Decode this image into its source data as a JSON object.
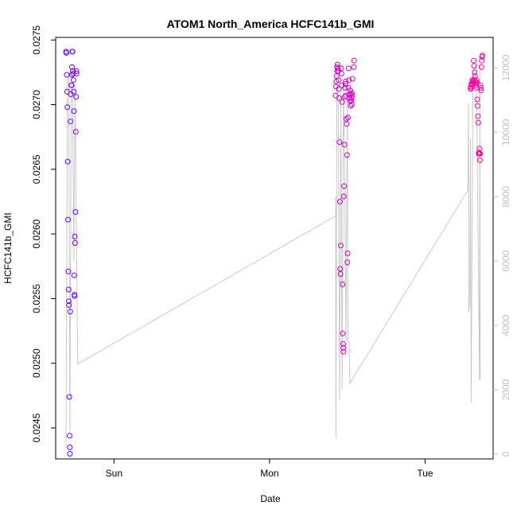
{
  "chart_data": {
    "type": "scatter",
    "title": "ATOM1 North_America HCFC141b_GMI",
    "xlabel": "Date",
    "ylabel": "HCFC141b_GMI",
    "x_ticks": [
      "Sun",
      "Mon",
      "Tue"
    ],
    "x_tick_hours": [
      24,
      48,
      72
    ],
    "xlim_hours": [
      15.0,
      82.5
    ],
    "ylim": [
      0.02426,
      0.02752
    ],
    "y_ticks": [
      0.0245,
      0.025,
      0.0255,
      0.026,
      0.0265,
      0.027,
      0.0275
    ],
    "y_tick_labels": [
      "0.0245",
      "0.0250",
      "0.0255",
      "0.0260",
      "0.0265",
      "0.0270",
      "0.0275"
    ],
    "y2lim": [
      -150,
      12950
    ],
    "y2_ticks": [
      0,
      2000,
      4000,
      6000,
      8000,
      10000,
      12000
    ],
    "y2_tick_labels": [
      "0",
      "2000",
      "4000",
      "6000",
      "8000",
      "10000",
      "12000"
    ],
    "grid": false,
    "series": [
      {
        "axis": "left",
        "style": "points",
        "color_start": "#6a00ff",
        "color_end": "#ff00a0",
        "points": [
          [
            16.6,
            0.02741
          ],
          [
            16.65,
            0.0274
          ],
          [
            16.7,
            0.02723
          ],
          [
            16.75,
            0.0271
          ],
          [
            16.8,
            0.02698
          ],
          [
            16.85,
            0.02656
          ],
          [
            16.9,
            0.02611
          ],
          [
            16.95,
            0.02571
          ],
          [
            17.0,
            0.02557
          ],
          [
            17.02,
            0.02548
          ],
          [
            17.05,
            0.02545
          ],
          [
            17.1,
            0.02474
          ],
          [
            17.15,
            0.02444
          ],
          [
            17.18,
            0.02435
          ],
          [
            17.2,
            0.0243
          ],
          [
            17.25,
            0.0254
          ],
          [
            17.3,
            0.02687
          ],
          [
            17.35,
            0.02708
          ],
          [
            17.4,
            0.02715
          ],
          [
            17.45,
            0.02715
          ],
          [
            17.5,
            0.02723
          ],
          [
            17.52,
            0.02729
          ],
          [
            17.55,
            0.02741
          ],
          [
            17.6,
            0.02741
          ],
          [
            17.65,
            0.02726
          ],
          [
            17.7,
            0.02724
          ],
          [
            17.75,
            0.02719
          ],
          [
            17.8,
            0.0271
          ],
          [
            17.82,
            0.02695
          ],
          [
            17.85,
            0.02568
          ],
          [
            17.9,
            0.02553
          ],
          [
            17.92,
            0.02552
          ],
          [
            17.95,
            0.02598
          ],
          [
            18.0,
            0.02593
          ],
          [
            18.05,
            0.02617
          ],
          [
            18.1,
            0.02679
          ],
          [
            18.15,
            0.02706
          ],
          [
            18.2,
            0.02726
          ],
          [
            18.22,
            0.02724
          ],
          [
            58.2,
            0.02707
          ],
          [
            58.25,
            0.02714
          ],
          [
            58.3,
            0.02718
          ],
          [
            58.35,
            0.02722
          ],
          [
            58.4,
            0.02729
          ],
          [
            58.45,
            0.02726
          ],
          [
            58.5,
            0.02731
          ],
          [
            58.55,
            0.02728
          ],
          [
            58.6,
            0.02726
          ],
          [
            58.65,
            0.02719
          ],
          [
            58.7,
            0.02712
          ],
          [
            58.75,
            0.02705
          ],
          [
            58.8,
            0.02671
          ],
          [
            58.85,
            0.02625
          ],
          [
            58.9,
            0.02573
          ],
          [
            58.95,
            0.02569
          ],
          [
            59.0,
            0.02591
          ],
          [
            59.05,
            0.02728
          ],
          [
            59.1,
            0.02724
          ],
          [
            59.15,
            0.02715
          ],
          [
            59.2,
            0.02702
          ],
          [
            59.25,
            0.02561
          ],
          [
            59.3,
            0.02523
          ],
          [
            59.35,
            0.02515
          ],
          [
            59.38,
            0.02512
          ],
          [
            59.4,
            0.02509
          ],
          [
            59.45,
            0.02629
          ],
          [
            59.5,
            0.02637
          ],
          [
            59.55,
            0.02669
          ],
          [
            59.6,
            0.02706
          ],
          [
            59.65,
            0.02713
          ],
          [
            59.7,
            0.02716
          ],
          [
            59.75,
            0.02718
          ],
          [
            59.8,
            0.02707
          ],
          [
            59.85,
            0.02689
          ],
          [
            59.9,
            0.02685
          ],
          [
            59.95,
            0.02661
          ],
          [
            60.0,
            0.02578
          ],
          [
            60.05,
            0.02585
          ],
          [
            60.1,
            0.0269
          ],
          [
            60.15,
            0.02713
          ],
          [
            60.2,
            0.02728
          ],
          [
            60.25,
            0.02719
          ],
          [
            60.3,
            0.02708
          ],
          [
            60.35,
            0.02705
          ],
          [
            60.4,
            0.02703
          ],
          [
            60.45,
            0.02711
          ],
          [
            60.5,
            0.02699
          ],
          [
            60.55,
            0.02708
          ],
          [
            60.6,
            0.02703
          ],
          [
            60.65,
            0.02705
          ],
          [
            60.7,
            0.02709
          ],
          [
            60.72,
            0.027
          ],
          [
            60.75,
            0.02707
          ],
          [
            60.8,
            0.0272
          ],
          [
            61.0,
            0.02729
          ],
          [
            61.05,
            0.02734
          ],
          [
            79.0,
            0.02712
          ],
          [
            79.05,
            0.02714
          ],
          [
            79.1,
            0.02713
          ],
          [
            79.15,
            0.02716
          ],
          [
            79.2,
            0.02716
          ],
          [
            79.25,
            0.02715
          ],
          [
            79.3,
            0.02719
          ],
          [
            79.35,
            0.02718
          ],
          [
            79.4,
            0.02718
          ],
          [
            79.45,
            0.02717
          ],
          [
            79.5,
            0.02734
          ],
          [
            79.55,
            0.0273
          ],
          [
            79.6,
            0.02719
          ],
          [
            79.65,
            0.02725
          ],
          [
            79.7,
            0.02722
          ],
          [
            79.75,
            0.02718
          ],
          [
            79.8,
            0.02717
          ],
          [
            79.85,
            0.02715
          ],
          [
            79.9,
            0.02713
          ],
          [
            79.95,
            0.02719
          ],
          [
            80.0,
            0.02717
          ],
          [
            80.05,
            0.02704
          ],
          [
            80.1,
            0.02699
          ],
          [
            80.15,
            0.02691
          ],
          [
            80.2,
            0.02686
          ],
          [
            80.25,
            0.02662
          ],
          [
            80.3,
            0.02663
          ],
          [
            80.35,
            0.02662
          ],
          [
            80.4,
            0.02666
          ],
          [
            80.45,
            0.02657
          ],
          [
            80.5,
            0.02662
          ],
          [
            80.55,
            0.02715
          ],
          [
            80.6,
            0.02713
          ],
          [
            80.65,
            0.02711
          ],
          [
            80.7,
            0.02729
          ],
          [
            80.75,
            0.02734
          ],
          [
            80.8,
            0.02737
          ],
          [
            80.85,
            0.02738
          ]
        ]
      },
      {
        "axis": "right",
        "style": "line",
        "color": "#c8c8c8",
        "points": [
          [
            16.6,
            200
          ],
          [
            16.8,
            11600
          ],
          [
            17.0,
            11700
          ],
          [
            17.2,
            700
          ],
          [
            17.4,
            11500
          ],
          [
            17.6,
            11400
          ],
          [
            17.8,
            6000
          ],
          [
            18.0,
            11500
          ],
          [
            18.4,
            2800
          ],
          [
            58.2,
            7400
          ],
          [
            58.2,
            8000
          ],
          [
            58.25,
            500
          ],
          [
            58.4,
            11500
          ],
          [
            58.6,
            11000
          ],
          [
            58.8,
            1700
          ],
          [
            59.0,
            11200
          ],
          [
            59.2,
            2000
          ],
          [
            59.4,
            11500
          ],
          [
            59.6,
            8700
          ],
          [
            59.8,
            3500
          ],
          [
            60.0,
            11000
          ],
          [
            60.1,
            3500
          ],
          [
            60.3,
            3500
          ],
          [
            60.4,
            2200
          ],
          [
            78.6,
            8200
          ],
          [
            78.7,
            10900
          ],
          [
            78.75,
            4400
          ],
          [
            78.9,
            4900
          ],
          [
            79.0,
            9800
          ],
          [
            79.1,
            1600
          ],
          [
            79.4,
            11900
          ],
          [
            79.9,
            12100
          ],
          [
            80.4,
            2300
          ],
          [
            80.45,
            12100
          ],
          [
            80.5,
            2300
          ]
        ]
      }
    ]
  }
}
